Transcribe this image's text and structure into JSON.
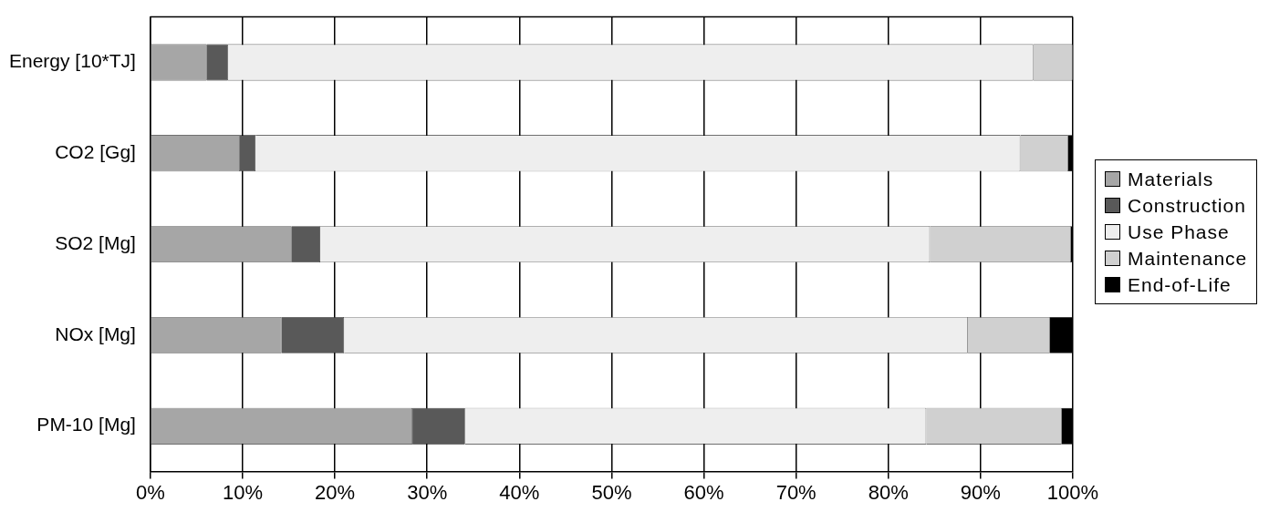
{
  "chart_data": {
    "type": "bar",
    "orientation": "horizontal",
    "stacked": true,
    "categories": [
      "Energy [10*TJ]",
      "CO2 [Gg]",
      "SO2 [Mg]",
      "NOx [Mg]",
      "PM-10 [Mg]"
    ],
    "series": [
      {
        "name": "Materials",
        "color": "#a6a6a6",
        "values": [
          6.1,
          9.7,
          15.3,
          14.2,
          28.4
        ]
      },
      {
        "name": "Construction",
        "color": "#595959",
        "values": [
          2.3,
          1.7,
          3.1,
          6.8,
          5.7
        ]
      },
      {
        "name": "Use Phase",
        "color": "#eeeeee",
        "values": [
          87.3,
          82.9,
          66.1,
          67.6,
          50.0
        ]
      },
      {
        "name": "Maintenance",
        "color": "#d0d0d0",
        "values": [
          4.3,
          5.2,
          15.3,
          8.9,
          14.7
        ]
      },
      {
        "name": "End-of-Life",
        "color": "#000000",
        "values": [
          0,
          0.5,
          0.2,
          2.5,
          1.2
        ]
      }
    ],
    "xlim": [
      0,
      100
    ],
    "xticks": [
      {
        "value": 0,
        "label": "0%"
      },
      {
        "value": 10,
        "label": "10%"
      },
      {
        "value": 20,
        "label": "20%"
      },
      {
        "value": 30,
        "label": "30%"
      },
      {
        "value": 40,
        "label": "40%"
      },
      {
        "value": 50,
        "label": "50%"
      },
      {
        "value": 60,
        "label": "60%"
      },
      {
        "value": 70,
        "label": "70%"
      },
      {
        "value": 80,
        "label": "80%"
      },
      {
        "value": 90,
        "label": "90%"
      },
      {
        "value": 100,
        "label": "100%"
      }
    ],
    "grid": "x",
    "legend": "right"
  }
}
